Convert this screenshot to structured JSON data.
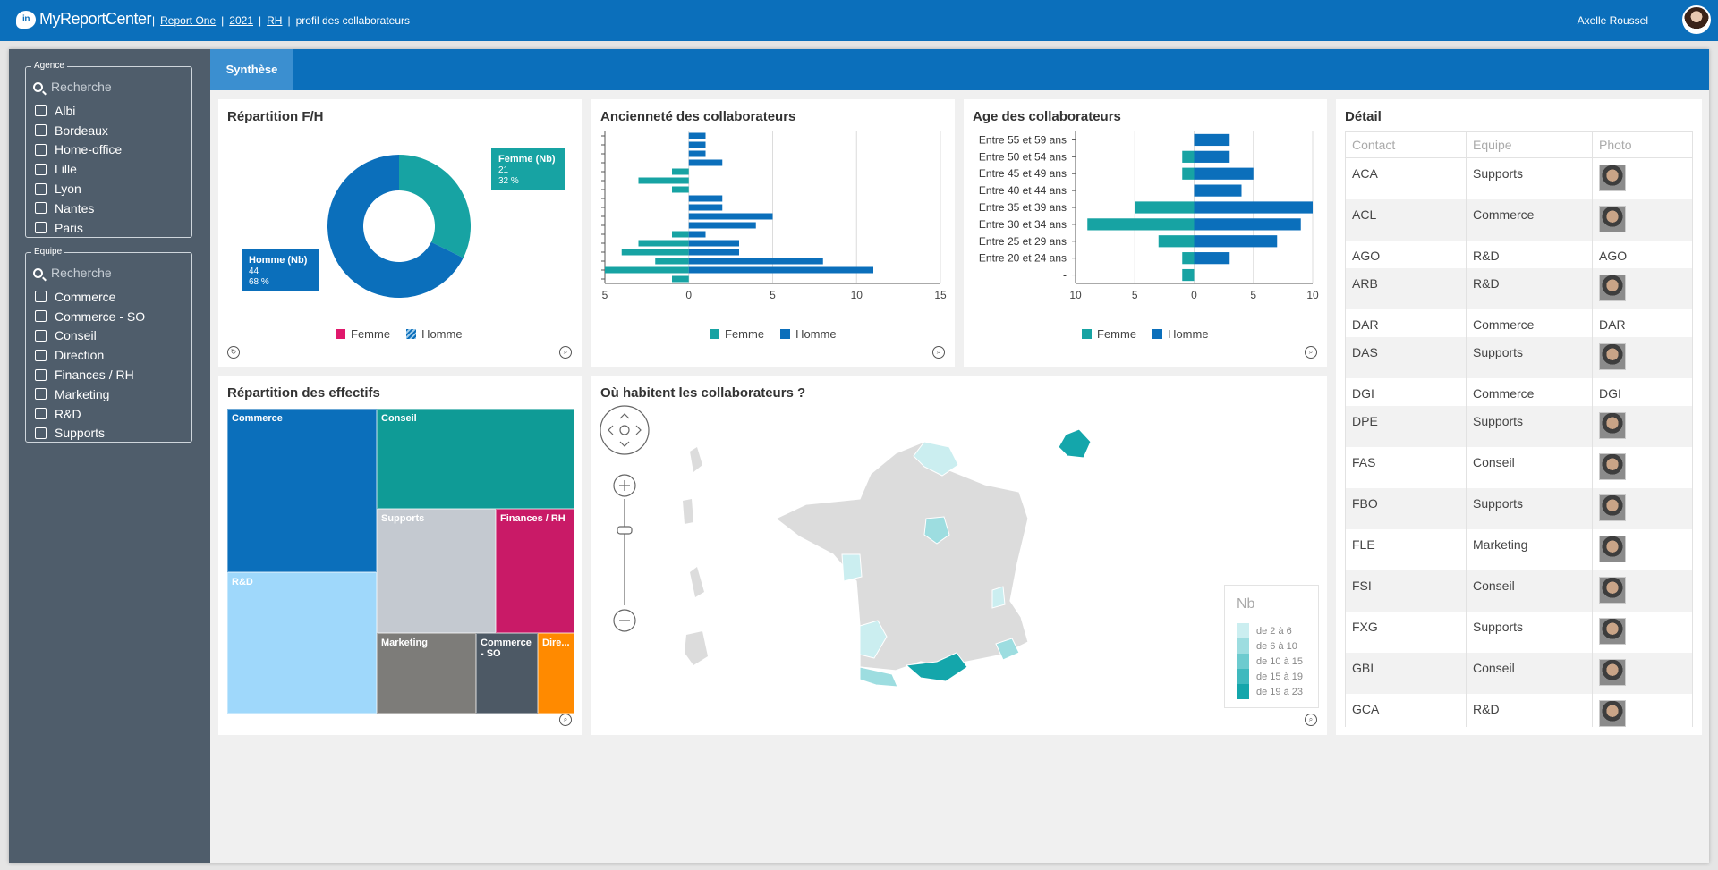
{
  "header": {
    "logo": "MyReportCenter",
    "breadcrumb": [
      "Report One",
      "2021",
      "RH"
    ],
    "current_page": "profil des collaborateurs",
    "user_name": "Axelle Roussel"
  },
  "sidebar": {
    "agence": {
      "legend": "Agence",
      "search_placeholder": "Recherche",
      "options": [
        "Albi",
        "Bordeaux",
        "Home-office",
        "Lille",
        "Lyon",
        "Nantes",
        "Paris"
      ]
    },
    "equipe": {
      "legend": "Equipe",
      "search_placeholder": "Recherche",
      "options": [
        "Commerce",
        "Commerce - SO",
        "Conseil",
        "Direction",
        "Finances / RH",
        "Marketing",
        "R&D",
        "Supports"
      ]
    }
  },
  "tabs": [
    {
      "label": "Synthèse",
      "active": true
    }
  ],
  "colors": {
    "femme": "#17a3a3",
    "homme": "#0b6fbb",
    "femme_pie": "#e0186c"
  },
  "repartition_fh": {
    "title": "Répartition F/H",
    "chart_data": {
      "type": "pie",
      "labels": [
        "Femme (Nb)",
        "Homme (Nb)"
      ],
      "values": [
        21,
        44
      ],
      "percents": [
        "32 %",
        "68 %"
      ]
    },
    "legend": [
      "Femme",
      "Homme"
    ]
  },
  "anciennete": {
    "title": "Ancienneté des collaborateurs",
    "chart_data": {
      "type": "bar",
      "orientation": "horizontal",
      "xlim": [
        -5,
        15
      ],
      "xticks": [
        "5",
        "0",
        "5",
        "10",
        "15"
      ],
      "series": [
        {
          "name": "Femme",
          "values": [
            0,
            0,
            0,
            0,
            -1,
            -3,
            -1,
            0,
            0,
            0,
            0,
            -1,
            -3,
            -4,
            -2,
            -5,
            -1
          ]
        },
        {
          "name": "Homme",
          "values": [
            1,
            1,
            1,
            2,
            0,
            0,
            0,
            2,
            2,
            5,
            4,
            1,
            3,
            3,
            8,
            11,
            0
          ]
        }
      ]
    },
    "legend": [
      "Femme",
      "Homme"
    ]
  },
  "age": {
    "title": "Age des collaborateurs",
    "chart_data": {
      "type": "bar",
      "orientation": "horizontal",
      "categories": [
        "Entre 55 et 59 ans",
        "Entre 50 et 54 ans",
        "Entre 45 et 49 ans",
        "Entre 40 et 44 ans",
        "Entre 35 et 39 ans",
        "Entre 30 et 34 ans",
        "Entre 25 et 29 ans",
        "Entre 20 et 24 ans",
        "-"
      ],
      "xlim": [
        -10,
        10
      ],
      "xticks": [
        "10",
        "5",
        "0",
        "5",
        "10"
      ],
      "series": [
        {
          "name": "Femme",
          "values": [
            0,
            -1,
            -1,
            0,
            -5,
            -9,
            -3,
            -1,
            -1
          ]
        },
        {
          "name": "Homme",
          "values": [
            3,
            3,
            5,
            4,
            10,
            9,
            7,
            3,
            0
          ]
        }
      ]
    },
    "legend": [
      "Femme",
      "Homme"
    ]
  },
  "effectifs": {
    "title": "Répartition des effectifs",
    "chart_data": {
      "type": "treemap",
      "items": [
        {
          "label": "Commerce",
          "color": "#0b6fbb"
        },
        {
          "label": "Conseil",
          "color": "#0f9b96"
        },
        {
          "label": "R&D",
          "color": "#9fd8fb"
        },
        {
          "label": "Supports",
          "color": "#c4c9d0"
        },
        {
          "label": "Finances / RH",
          "color": "#c91a67"
        },
        {
          "label": "Marketing",
          "color": "#7d7c79"
        },
        {
          "label": "Commerce - SO",
          "color": "#4d5965"
        },
        {
          "label": "Dire...",
          "color": "#ff8a00"
        }
      ]
    }
  },
  "carte": {
    "title": "Où habitent les collaborateurs ?",
    "legend_title": "Nb",
    "legend": [
      {
        "label": "de 2 à 6",
        "color": "#cbeef0"
      },
      {
        "label": "de 6 à 10",
        "color": "#9ddde0"
      },
      {
        "label": "de 10 à 15",
        "color": "#6dcbcf"
      },
      {
        "label": "de 15 à 19",
        "color": "#3fb9be"
      },
      {
        "label": "de 19 à 23",
        "color": "#14a6ab"
      }
    ]
  },
  "detail": {
    "title": "Détail",
    "columns": [
      "Contact",
      "Equipe",
      "Photo"
    ],
    "rows": [
      {
        "contact": "ACA",
        "equipe": "Supports",
        "photo": ""
      },
      {
        "contact": "ACL",
        "equipe": "Commerce",
        "photo": ""
      },
      {
        "contact": "AGO",
        "equipe": "R&D",
        "photo": "AGO"
      },
      {
        "contact": "ARB",
        "equipe": "R&D",
        "photo": ""
      },
      {
        "contact": "DAR",
        "equipe": "Commerce",
        "photo": "DAR"
      },
      {
        "contact": "DAS",
        "equipe": "Supports",
        "photo": ""
      },
      {
        "contact": "DGI",
        "equipe": "Commerce",
        "photo": "DGI"
      },
      {
        "contact": "DPE",
        "equipe": "Supports",
        "photo": ""
      },
      {
        "contact": "FAS",
        "equipe": "Conseil",
        "photo": ""
      },
      {
        "contact": "FBO",
        "equipe": "Supports",
        "photo": ""
      },
      {
        "contact": "FLE",
        "equipe": "Marketing",
        "photo": ""
      },
      {
        "contact": "FSI",
        "equipe": "Conseil",
        "photo": ""
      },
      {
        "contact": "FXG",
        "equipe": "Supports",
        "photo": ""
      },
      {
        "contact": "GBI",
        "equipe": "Conseil",
        "photo": ""
      },
      {
        "contact": "GCA",
        "equipe": "R&D",
        "photo": ""
      }
    ]
  }
}
